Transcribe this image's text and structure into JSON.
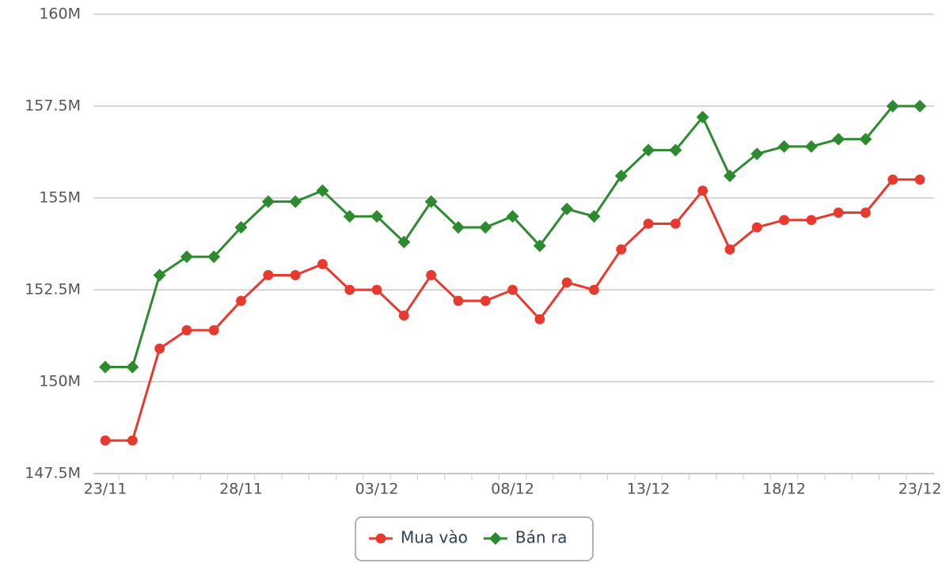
{
  "chart_data": {
    "type": "line",
    "categories": [
      "23/11",
      null,
      null,
      null,
      null,
      "28/11",
      null,
      null,
      null,
      null,
      "03/12",
      null,
      null,
      null,
      null,
      "08/12",
      null,
      null,
      null,
      null,
      "13/12",
      null,
      null,
      null,
      null,
      "18/12",
      null,
      null,
      null,
      null,
      "23/12"
    ],
    "series": [
      {
        "name": "Mua vào",
        "color": "#e8392f",
        "marker": "circle",
        "values": [
          148.4,
          148.4,
          150.9,
          151.4,
          151.4,
          152.2,
          152.9,
          152.9,
          153.2,
          152.5,
          152.5,
          151.8,
          152.9,
          152.2,
          152.2,
          152.5,
          151.7,
          152.7,
          152.5,
          153.6,
          154.3,
          154.3,
          155.2,
          153.6,
          154.2,
          154.4,
          154.4,
          154.6,
          154.6,
          155.5,
          155.5
        ]
      },
      {
        "name": "Bán ra",
        "color": "#2e8a2e",
        "marker": "diamond",
        "values": [
          150.4,
          150.4,
          152.9,
          153.4,
          153.4,
          154.2,
          154.9,
          154.9,
          155.2,
          154.5,
          154.5,
          153.8,
          154.9,
          154.2,
          154.2,
          154.5,
          153.7,
          154.7,
          154.5,
          155.6,
          156.3,
          156.3,
          157.2,
          155.6,
          156.2,
          156.4,
          156.4,
          156.6,
          156.6,
          157.5,
          157.5
        ]
      }
    ],
    "ylim": [
      147.5,
      160
    ],
    "yticks": [
      {
        "value": 147.5,
        "label": "147.5M"
      },
      {
        "value": 150,
        "label": "150M"
      },
      {
        "value": 152.5,
        "label": "152.5M"
      },
      {
        "value": 155,
        "label": "155M"
      },
      {
        "value": 157.5,
        "label": "157.5M"
      },
      {
        "value": 160,
        "label": "160M"
      }
    ],
    "grid": true
  }
}
